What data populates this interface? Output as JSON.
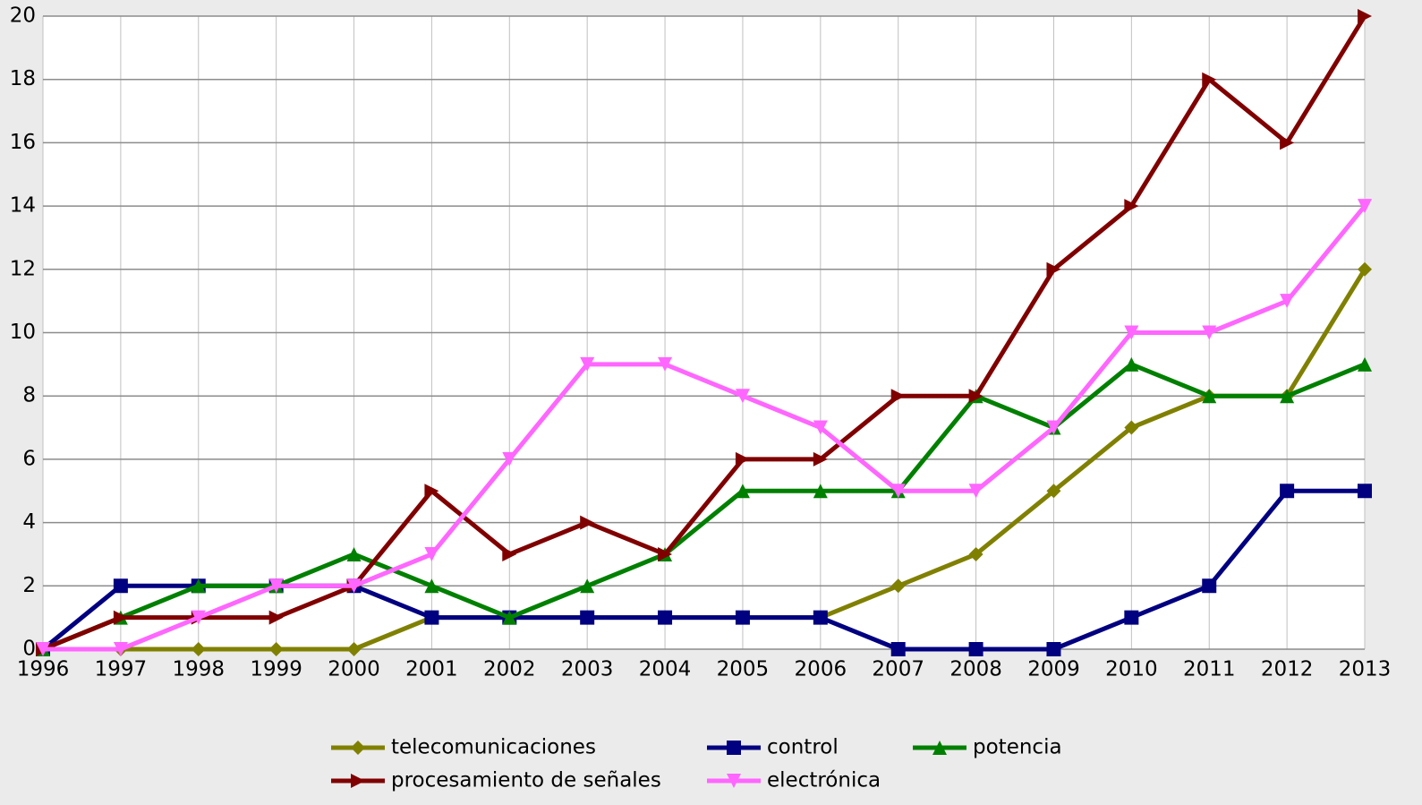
{
  "chart_data": {
    "type": "line",
    "x": [
      1996,
      1997,
      1998,
      1999,
      2000,
      2001,
      2002,
      2003,
      2004,
      2005,
      2006,
      2007,
      2008,
      2009,
      2010,
      2011,
      2012,
      2013
    ],
    "xlim": [
      1996,
      2013
    ],
    "xticks": [
      1996,
      1997,
      1998,
      1999,
      2000,
      2001,
      2002,
      2003,
      2004,
      2005,
      2006,
      2007,
      2008,
      2009,
      2010,
      2011,
      2012,
      2013
    ],
    "ylim": [
      0,
      20
    ],
    "yticks": [
      0,
      2,
      4,
      6,
      8,
      10,
      12,
      14,
      16,
      18,
      20
    ],
    "grid": true,
    "legend": "bottom",
    "series": [
      {
        "name": "telecomunicaciones",
        "color": "#808000",
        "marker": "diamond",
        "values": [
          0,
          0,
          0,
          0,
          0,
          1,
          1,
          1,
          1,
          1,
          1,
          2,
          3,
          5,
          7,
          8,
          8,
          12
        ]
      },
      {
        "name": "control",
        "color": "#000080",
        "marker": "square",
        "values": [
          0,
          2,
          2,
          2,
          2,
          1,
          1,
          1,
          1,
          1,
          1,
          0,
          0,
          0,
          1,
          2,
          5,
          5
        ]
      },
      {
        "name": "potencia",
        "color": "#008000",
        "marker": "triangle-up",
        "values": [
          0,
          1,
          2,
          2,
          3,
          2,
          1,
          2,
          3,
          5,
          5,
          5,
          8,
          7,
          9,
          8,
          8,
          9
        ]
      },
      {
        "name": "procesamiento de señales",
        "color": "#800000",
        "marker": "triangle-right",
        "values": [
          0,
          1,
          1,
          1,
          2,
          5,
          3,
          4,
          3,
          6,
          6,
          8,
          8,
          12,
          14,
          18,
          16,
          20
        ]
      },
      {
        "name": "electrónica",
        "color": "#ff66ff",
        "marker": "triangle-down",
        "values": [
          0,
          0,
          1,
          2,
          2,
          3,
          6,
          9,
          9,
          8,
          7,
          5,
          5,
          7,
          10,
          10,
          11,
          14
        ]
      }
    ]
  }
}
